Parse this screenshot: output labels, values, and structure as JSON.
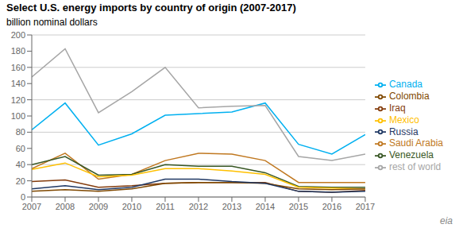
{
  "chart_data": {
    "type": "line",
    "title": "Select U.S. energy imports by country of origin (2007-2017)",
    "ylabel": "billion nominal dollars",
    "x": [
      2007,
      2008,
      2009,
      2010,
      2011,
      2012,
      2013,
      2014,
      2015,
      2016,
      2017
    ],
    "series": [
      {
        "name": "Canada",
        "color": "#00b0f0",
        "values": [
          83,
          116,
          64,
          78,
          101,
          103,
          105,
          116,
          65,
          53,
          77
        ]
      },
      {
        "name": "rest of world",
        "color": "#a6a6a6",
        "values": [
          148,
          183,
          104,
          130,
          160,
          110,
          112,
          113,
          50,
          45,
          53
        ]
      },
      {
        "name": "Saudi Arabia",
        "color": "#c07820",
        "values": [
          35,
          54,
          22,
          28,
          45,
          54,
          53,
          45,
          18,
          18,
          18
        ]
      },
      {
        "name": "Venezuela",
        "color": "#375623",
        "values": [
          40,
          50,
          27,
          28,
          40,
          38,
          38,
          30,
          13,
          12,
          12
        ]
      },
      {
        "name": "Mexico",
        "color": "#ffc000",
        "values": [
          34,
          42,
          25,
          27,
          35,
          35,
          32,
          28,
          12,
          11,
          10
        ]
      },
      {
        "name": "Iraq",
        "color": "#843c0c",
        "values": [
          19,
          21,
          12,
          14,
          17,
          18,
          18,
          18,
          7,
          6,
          8
        ]
      },
      {
        "name": "Colombia",
        "color": "#7f4800",
        "values": [
          7,
          9,
          7,
          10,
          17,
          18,
          18,
          17,
          10,
          9,
          10
        ]
      },
      {
        "name": "Russia",
        "color": "#1f3864",
        "values": [
          10,
          14,
          9,
          12,
          22,
          22,
          19,
          17,
          7,
          6,
          7
        ]
      }
    ],
    "xlim": [
      2007,
      2017
    ],
    "xticks": [
      2007,
      2008,
      2009,
      2010,
      2011,
      2012,
      2013,
      2014,
      2015,
      2016,
      2017
    ],
    "ylim": [
      0,
      200
    ],
    "yticks": [
      0,
      20,
      40,
      60,
      80,
      100,
      120,
      140,
      160,
      180,
      200
    ],
    "grid": true,
    "legend": "right",
    "annotations": [
      "eia"
    ]
  }
}
